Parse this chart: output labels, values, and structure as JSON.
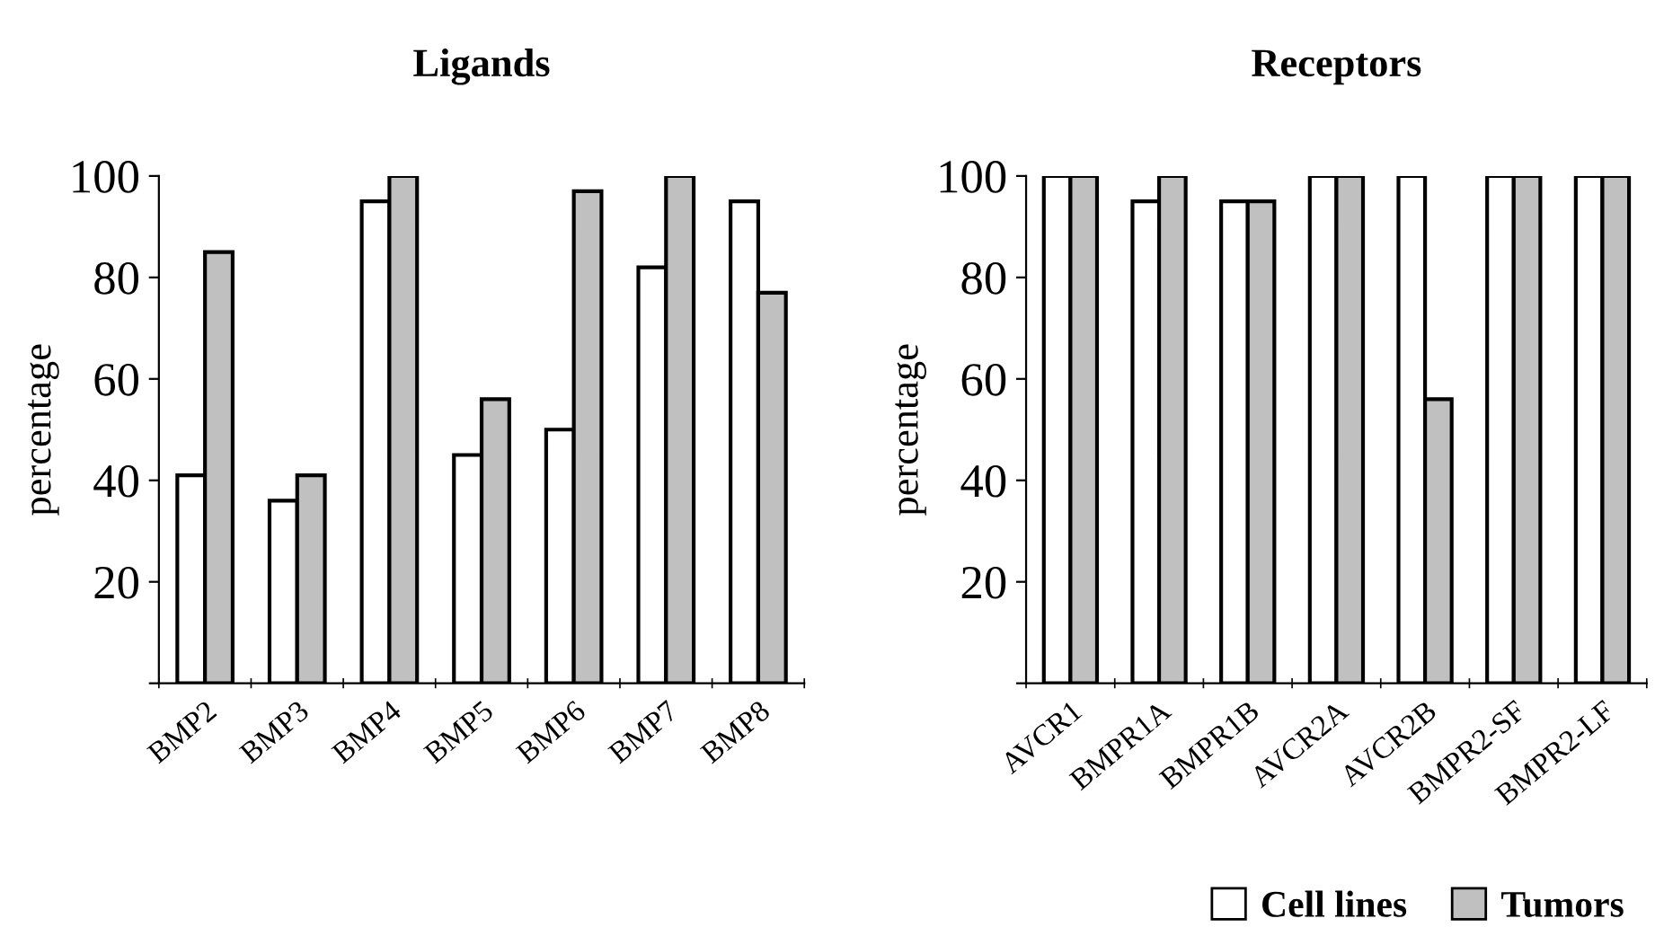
{
  "chart_data": [
    {
      "type": "bar",
      "title": "Ligands",
      "ylabel": "percentage",
      "categories": [
        "BMP2",
        "BMP3",
        "BMP4",
        "BMP5",
        "BMP6",
        "BMP7",
        "BMP8"
      ],
      "series": [
        {
          "color": "#ffffff",
          "values": [
            41,
            36,
            95,
            45,
            50,
            82,
            95
          ]
        },
        {
          "color": "#c0c0c0",
          "values": [
            85,
            41,
            100,
            56,
            97,
            100,
            77
          ]
        }
      ],
      "ylim": [
        0,
        100
      ],
      "yticks": [
        {
          "value": 0,
          "label": null
        },
        20,
        40,
        60,
        80,
        100
      ],
      "grid": false,
      "legend": false
    },
    {
      "type": "bar",
      "title": "Receptors",
      "ylabel": "percentage",
      "categories": [
        "AVCR1",
        "BMPR1A",
        "BMPR1B",
        "AVCR2A",
        "AVCR2B",
        "BMPR2-SF",
        "BMPR2-LF"
      ],
      "series": [
        {
          "name": "Cell lines",
          "color": "#ffffff",
          "values": [
            100,
            95,
            95,
            100,
            100,
            100,
            100
          ]
        },
        {
          "name": "Tumors",
          "color": "#c0c0c0",
          "values": [
            100,
            100,
            95,
            100,
            56,
            100,
            100
          ]
        }
      ],
      "ylim": [
        0,
        100
      ],
      "yticks": [
        {
          "value": 0,
          "label": null
        },
        20,
        40,
        60,
        80,
        100
      ],
      "grid": false,
      "legend": "bottom"
    }
  ]
}
